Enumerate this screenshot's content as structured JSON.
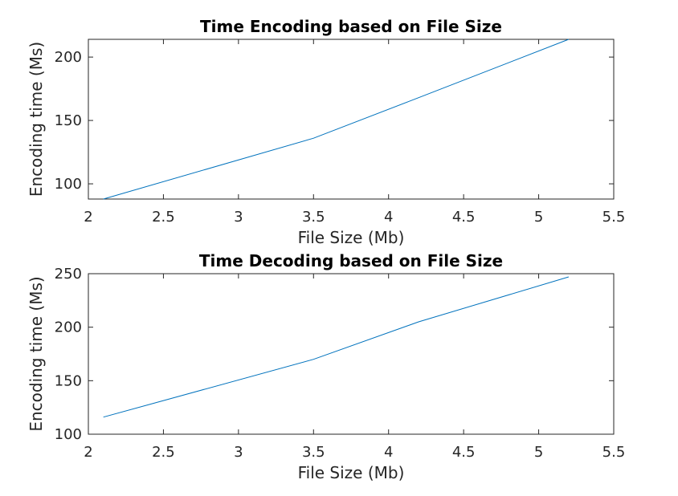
{
  "chart_data": [
    {
      "type": "line",
      "title": "Time Encoding based on File Size",
      "xlabel": "File Size (Mb)",
      "ylabel": "Encoding time (Ms)",
      "xlim": [
        2,
        5.5
      ],
      "ylim": [
        88,
        214
      ],
      "xticks": [
        2,
        2.5,
        3,
        3.5,
        4,
        4.5,
        5,
        5.5
      ],
      "xtick_labels": [
        "2",
        "2.5",
        "3",
        "3.5",
        "4",
        "4.5",
        "5",
        "5.5"
      ],
      "yticks": [
        100,
        150,
        200
      ],
      "ytick_labels": [
        "100",
        "150",
        "200"
      ],
      "grid": false,
      "series": [
        {
          "color": "#0072BD",
          "x": [
            2.1,
            3.5,
            4.2,
            5.2
          ],
          "y": [
            88,
            136,
            168,
            214
          ]
        }
      ]
    },
    {
      "type": "line",
      "title": "Time Decoding based on File Size",
      "xlabel": "File Size (Mb)",
      "ylabel": "Encoding time (Ms)",
      "xlim": [
        2,
        5.5
      ],
      "ylim": [
        100,
        250
      ],
      "xticks": [
        2,
        2.5,
        3,
        3.5,
        4,
        4.5,
        5,
        5.5
      ],
      "xtick_labels": [
        "2",
        "2.5",
        "3",
        "3.5",
        "4",
        "4.5",
        "5",
        "5.5"
      ],
      "yticks": [
        100,
        150,
        200,
        250
      ],
      "ytick_labels": [
        "100",
        "150",
        "200",
        "250"
      ],
      "grid": false,
      "series": [
        {
          "color": "#0072BD",
          "x": [
            2.1,
            3.5,
            4.2,
            5.2
          ],
          "y": [
            116,
            170,
            205,
            247
          ]
        }
      ]
    }
  ]
}
